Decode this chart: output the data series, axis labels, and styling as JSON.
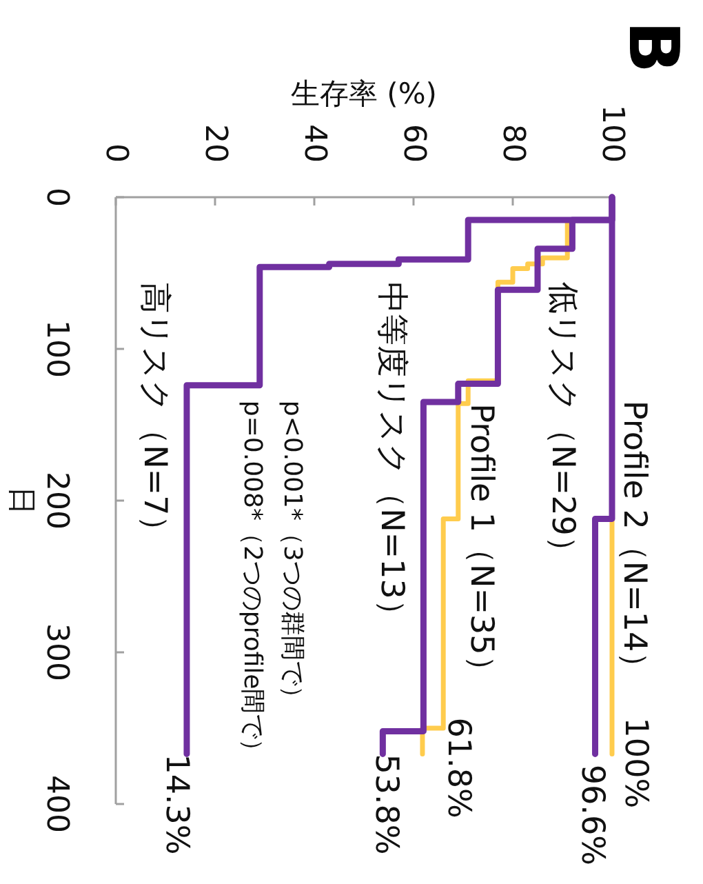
{
  "chart_data": {
    "type": "line",
    "title": "B",
    "xlabel": "生存率 (%)",
    "ylabel": "日",
    "xlim": [
      0,
      100
    ],
    "xticks": [
      0,
      20,
      40,
      60,
      80,
      100
    ],
    "ylim": [
      400,
      0
    ],
    "yticks": [
      0,
      100,
      200,
      300,
      400
    ],
    "grid": false,
    "legend": false,
    "marker": "none",
    "line_style": "solid",
    "series": [
      {
        "name": "Profile 2（N=14）",
        "color": "#ffcc4d",
        "x": [
          100,
          100
        ],
        "values": [
          212,
          367
        ]
      },
      {
        "name": "Profile 1（N=35）",
        "color": "#ffcc4d",
        "x": [
          91,
          91,
          86,
          86,
          83,
          83,
          80,
          80,
          77,
          77,
          71,
          71,
          69,
          69,
          66,
          66,
          61.8,
          61.8
        ],
        "values": [
          15,
          40,
          40,
          44,
          44,
          47,
          47,
          56,
          56,
          121,
          121,
          136,
          136,
          212,
          212,
          350,
          350,
          367
        ]
      },
      {
        "name": "低リスク（N=29）",
        "color": "#7030a0",
        "x": [
          100,
          100,
          96.6,
          96.6
        ],
        "values": [
          0,
          212,
          212,
          367
        ]
      },
      {
        "name": "中等度リスク（N=13）",
        "color": "#7030a0",
        "x": [
          100,
          100,
          92,
          92,
          85,
          85,
          77,
          77,
          69,
          69,
          62,
          62,
          53.8,
          53.8
        ],
        "values": [
          0,
          15,
          15,
          34,
          34,
          61,
          61,
          123,
          123,
          135,
          135,
          352,
          352,
          367
        ]
      },
      {
        "name": "高リスク（N=7）",
        "color": "#7030a0",
        "x": [
          100,
          100,
          71,
          71,
          57,
          57,
          43,
          43,
          29,
          29,
          14.3,
          14.3
        ],
        "values": [
          0,
          15,
          15,
          41,
          41,
          44,
          44,
          46,
          46,
          124,
          124,
          367
        ]
      }
    ],
    "annotations": [
      "100%",
      "96.6%",
      "61.8%",
      "53.8%",
      "14.3%",
      "p<0.001*（3つの群間で）",
      "p=0.008*（2つのprofile間で）"
    ]
  }
}
